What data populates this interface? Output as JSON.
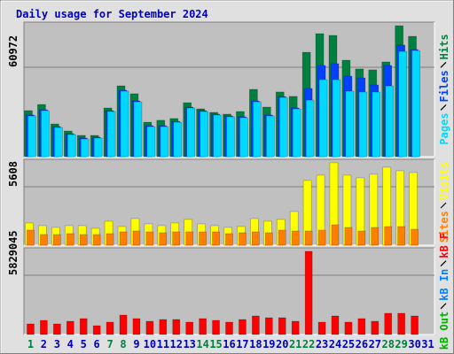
{
  "chart_data": [
    {
      "type": "bar",
      "title": "Daily usage for September 2024",
      "ylim": [
        0,
        91760
      ],
      "yticks": [
        60972
      ],
      "series": [
        {
          "name": "Hits",
          "color": "#008040",
          "values": [
            31400,
            35600,
            22300,
            17500,
            14500,
            14500,
            33200,
            48300,
            42900,
            23500,
            24800,
            26000,
            36800,
            32600,
            30200,
            29000,
            30800,
            45900,
            33800,
            44100,
            41100,
            71200,
            83900,
            82700,
            65800,
            59800,
            59200,
            64600,
            89300,
            82100,
            null
          ]
        },
        {
          "name": "Files",
          "color": "#0040ff",
          "values": [
            28400,
            32000,
            20500,
            15700,
            12700,
            13300,
            31400,
            45300,
            38000,
            21100,
            21100,
            24100,
            33800,
            31400,
            29000,
            27800,
            27200,
            38000,
            28400,
            41000,
            33200,
            46500,
            62200,
            63400,
            54900,
            53700,
            48900,
            62200,
            76100,
            73000,
            null
          ]
        },
        {
          "name": "Pages",
          "color": "#00d8ff",
          "values": [
            27800,
            31400,
            19900,
            15100,
            12100,
            12700,
            30800,
            44700,
            37400,
            20500,
            20500,
            23500,
            33200,
            30800,
            28400,
            27200,
            26600,
            37400,
            27800,
            40400,
            32600,
            38600,
            52500,
            52500,
            44700,
            44100,
            44100,
            48300,
            71800,
            72400,
            null
          ]
        }
      ]
    },
    {
      "type": "bar",
      "ylim": [
        0,
        8240
      ],
      "yticks": [
        5608
      ],
      "series": [
        {
          "name": "Visits",
          "color": "#ffff00",
          "values": [
            2125,
            1870,
            1700,
            1870,
            1870,
            1615,
            2295,
            1785,
            2550,
            2040,
            1870,
            2125,
            2465,
            2040,
            1870,
            1700,
            1785,
            2550,
            2295,
            2465,
            3230,
            6205,
            6715,
            7905,
            6715,
            6460,
            6800,
            7480,
            7140,
            6970,
            null
          ]
        },
        {
          "name": "Sites",
          "color": "#ff8000",
          "values": [
            1445,
            1020,
            1020,
            1105,
            1020,
            1020,
            1105,
            1275,
            1360,
            1275,
            1190,
            1275,
            1275,
            1275,
            1275,
            1105,
            1190,
            1275,
            1190,
            1445,
            1360,
            1360,
            1445,
            1955,
            1700,
            1360,
            1700,
            1785,
            1785,
            1530,
            null
          ]
        }
      ]
    },
    {
      "type": "bar",
      "ylim": [
        0,
        8526000
      ],
      "yticks": [
        5829045
      ],
      "categories": [
        "1",
        "2",
        "3",
        "4",
        "5",
        "6",
        "7",
        "8",
        "9",
        "10",
        "11",
        "12",
        "13",
        "14",
        "15",
        "16",
        "17",
        "18",
        "19",
        "20",
        "21",
        "22",
        "23",
        "24",
        "25",
        "26",
        "27",
        "28",
        "29",
        "30",
        "31"
      ],
      "category_colors": [
        "#008040",
        "#0000c0",
        "#0000c0",
        "#0000c0",
        "#0000c0",
        "#0000c0",
        "#008040",
        "#008040",
        "#0000c0",
        "#0000c0",
        "#0000c0",
        "#0000c0",
        "#0000c0",
        "#008040",
        "#008040",
        "#0000c0",
        "#0000c0",
        "#0000c0",
        "#0000c0",
        "#0000c0",
        "#008040",
        "#008040",
        "#0000c0",
        "#0000c0",
        "#0000c0",
        "#0000c0",
        "#0000c0",
        "#008040",
        "#008040",
        "#0000c0",
        "#0000c0"
      ],
      "series": [
        {
          "name": "kB F",
          "color": "#ff0000",
          "values": [
            1044000,
            1392000,
            1044000,
            1305000,
            1566000,
            870000,
            1218000,
            1914000,
            1566000,
            1305000,
            1479000,
            1479000,
            1218000,
            1566000,
            1392000,
            1218000,
            1479000,
            1827000,
            1653000,
            1653000,
            1305000,
            8178000,
            1218000,
            1827000,
            1218000,
            1566000,
            1305000,
            2088000,
            2088000,
            1827000,
            null
          ]
        },
        {
          "name": "kB In",
          "color": "#0080ff",
          "values": [
            null,
            null,
            null,
            null,
            null,
            null,
            null,
            null,
            null,
            null,
            null,
            null,
            null,
            null,
            null,
            null,
            null,
            null,
            null,
            null,
            null,
            null,
            null,
            null,
            null,
            null,
            null,
            null,
            null,
            null,
            null
          ]
        },
        {
          "name": "kB Out",
          "color": "#00b000",
          "values": [
            null,
            null,
            null,
            null,
            null,
            null,
            null,
            null,
            null,
            null,
            null,
            null,
            null,
            null,
            null,
            null,
            null,
            null,
            null,
            null,
            null,
            null,
            null,
            null,
            null,
            null,
            null,
            null,
            null,
            null,
            null
          ]
        }
      ]
    }
  ]
}
